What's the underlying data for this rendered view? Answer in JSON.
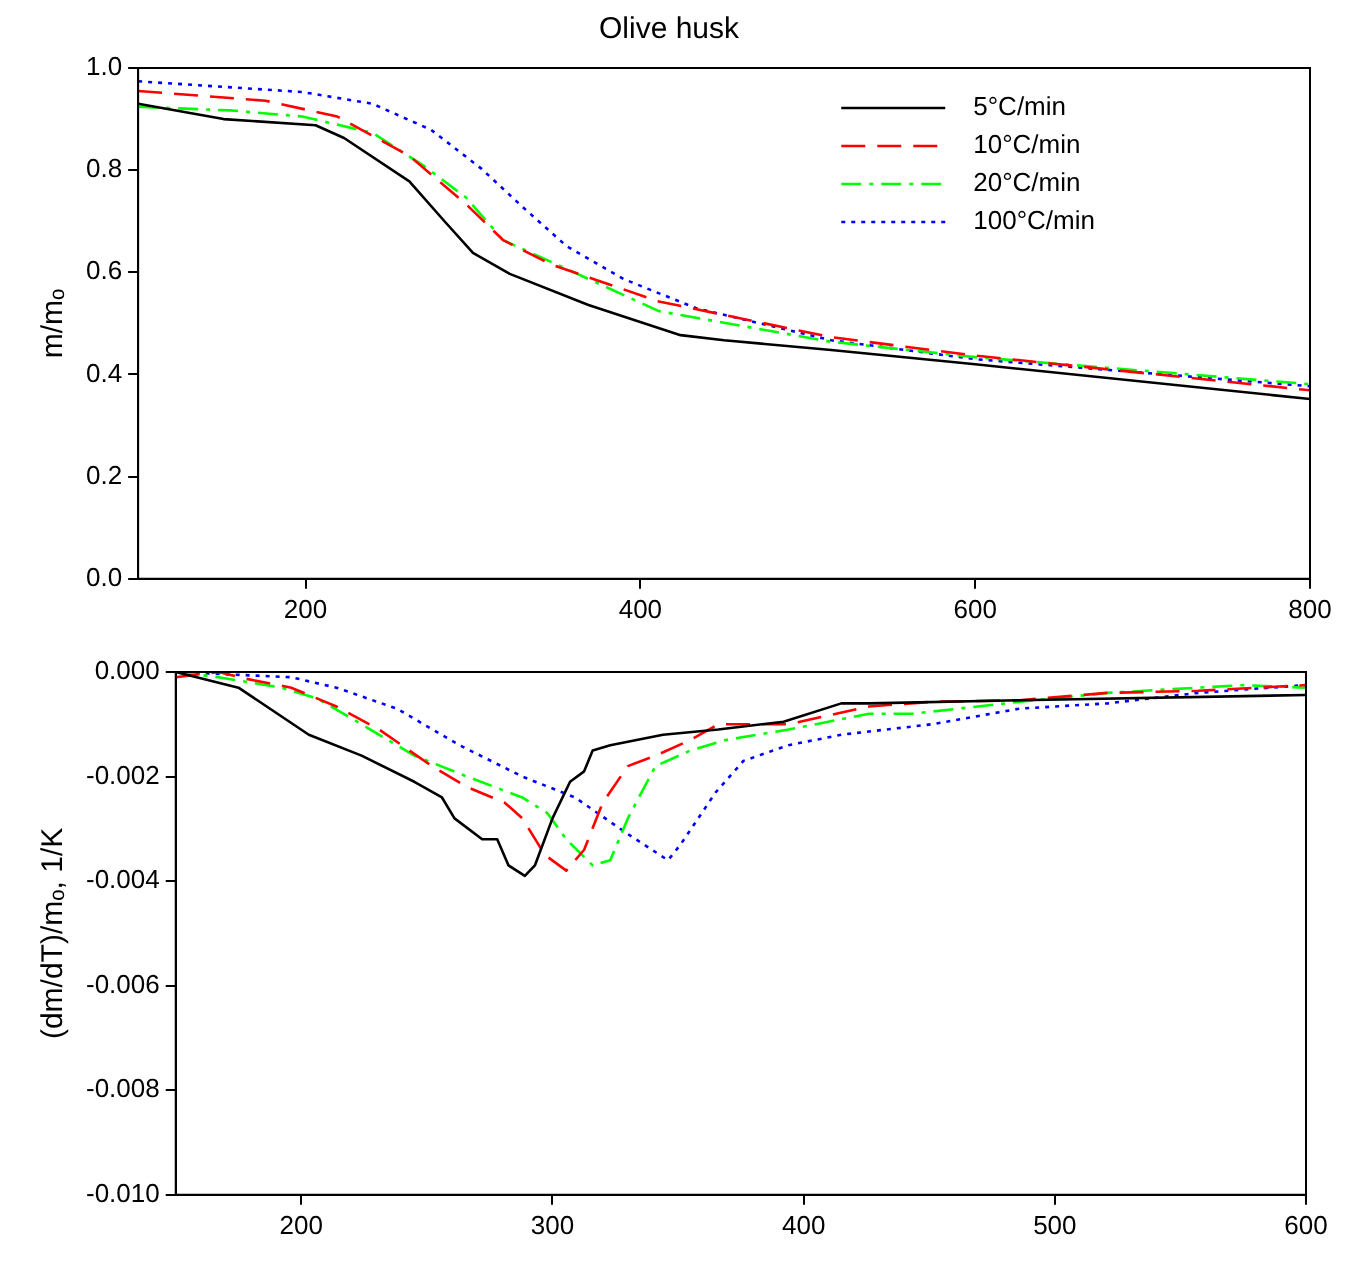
{
  "chart_data": [
    {
      "type": "line",
      "title": "Olive husk",
      "ylabel": "m/mₒ",
      "xlim": [
        100,
        800
      ],
      "xticks": [
        200,
        400,
        600,
        800
      ],
      "ylim": [
        0,
        1
      ],
      "yticks": [
        {
          "value": 0,
          "label": "0.0"
        },
        {
          "value": 0.2,
          "label": "0.2"
        },
        {
          "value": 0.4,
          "label": "0.4"
        },
        {
          "value": 0.6,
          "label": "0.6"
        },
        {
          "value": 0.8,
          "label": "0.8"
        },
        {
          "value": 1,
          "label": "1.0"
        }
      ],
      "grid": false,
      "legend": "top right",
      "marker": "none",
      "series": [
        {
          "name": "5°C/min",
          "color": "#000000",
          "line_style": "solid",
          "x": [
            100,
            151,
            206,
            223,
            262,
            283,
            300,
            322,
            369,
            424,
            450,
            514,
            600,
            800
          ],
          "values": [
            0.93,
            0.9,
            0.888,
            0.863,
            0.778,
            0.7,
            0.638,
            0.597,
            0.536,
            0.477,
            0.467,
            0.448,
            0.42,
            0.352
          ]
        },
        {
          "name": "10°C/min",
          "color": "#ff0000",
          "line_style": "dashed",
          "x": [
            100,
            176,
            219,
            262,
            296,
            318,
            347,
            411,
            514,
            600,
            800
          ],
          "values": [
            0.955,
            0.936,
            0.905,
            0.828,
            0.733,
            0.663,
            0.615,
            0.543,
            0.473,
            0.437,
            0.369
          ]
        },
        {
          "name": "20°C/min",
          "color": "#00ff00",
          "line_style": "dashdot",
          "x": [
            100,
            155,
            198,
            240,
            270,
            296,
            318,
            347,
            411,
            514,
            600,
            800
          ],
          "values": [
            0.924,
            0.917,
            0.905,
            0.873,
            0.81,
            0.746,
            0.663,
            0.62,
            0.524,
            0.464,
            0.434,
            0.381
          ]
        },
        {
          "name": "100°C/min",
          "color": "#0000ff",
          "line_style": "dotted",
          "x": [
            100,
            198,
            240,
            275,
            305,
            330,
            356,
            390,
            433,
            514,
            600,
            800
          ],
          "values": [
            0.974,
            0.953,
            0.93,
            0.879,
            0.803,
            0.727,
            0.651,
            0.587,
            0.53,
            0.467,
            0.43,
            0.377
          ]
        }
      ]
    },
    {
      "type": "line",
      "ylabel": "(dm/dT)/mₒ, 1/K",
      "xlim": [
        150,
        600
      ],
      "xticks": [
        200,
        300,
        400,
        500,
        600
      ],
      "ylim": [
        -0.01,
        0
      ],
      "yticks": [
        {
          "value": -0.01,
          "label": "-0.010"
        },
        {
          "value": -0.008,
          "label": "-0.008"
        },
        {
          "value": -0.006,
          "label": "-0.006"
        },
        {
          "value": -0.004,
          "label": "-0.004"
        },
        {
          "value": -0.002,
          "label": "-0.002"
        },
        {
          "value": 0,
          "label": "0.000"
        }
      ],
      "grid": false,
      "legend": false,
      "marker": "none",
      "series": [
        {
          "color": "#000000",
          "line_style": "solid",
          "x": [
            150,
            175,
            203,
            224,
            245,
            256,
            261,
            272,
            278,
            282.5,
            289,
            293,
            300,
            307,
            312.6,
            316,
            323,
            344,
            366,
            392,
            415,
            426,
            486,
            600
          ],
          "values": [
            0,
            -0.0003,
            -0.0012,
            -0.0016,
            -0.0021,
            -0.0024,
            -0.0028,
            -0.0032,
            -0.0032,
            -0.0037,
            -0.0039,
            -0.0037,
            -0.0028,
            -0.0021,
            -0.0019,
            -0.0015,
            -0.0014,
            -0.0012,
            -0.0011,
            -0.00095,
            -0.0006,
            -0.0006,
            -0.00054,
            -0.00044
          ]
        },
        {
          "color": "#ff0000",
          "line_style": "dashed",
          "x": [
            150,
            167,
            178,
            196,
            214,
            231,
            252,
            266,
            281,
            288,
            297,
            305.5,
            312.6,
            320,
            330,
            341,
            355,
            366,
            394,
            426,
            451,
            486,
            521,
            557,
            600
          ],
          "values": [
            -0.0001,
            0,
            -0.00013,
            -0.0003,
            -0.00066,
            -0.0011,
            -0.0018,
            -0.0022,
            -0.0025,
            -0.0028,
            -0.0035,
            -0.0038,
            -0.0034,
            -0.0025,
            -0.0018,
            -0.0016,
            -0.0013,
            -0.001,
            -0.001,
            -0.00066,
            -0.00057,
            -0.00054,
            -0.0004,
            -0.00036,
            -0.00025
          ]
        },
        {
          "color": "#00ff00",
          "line_style": "dashdot",
          "x": [
            150,
            167,
            192,
            206,
            224,
            245,
            266,
            288,
            298,
            305.5,
            316,
            323,
            330,
            341,
            355,
            369,
            394,
            426,
            443,
            486,
            521,
            575,
            600
          ],
          "values": [
            0,
            -0.0001,
            -0.0003,
            -0.0005,
            -0.001,
            -0.0016,
            -0.002,
            -0.0024,
            -0.0027,
            -0.0032,
            -0.0037,
            -0.0036,
            -0.0028,
            -0.0018,
            -0.0015,
            -0.0013,
            -0.0011,
            -0.0008,
            -0.0008,
            -0.00057,
            -0.0004,
            -0.00025,
            -0.0003
          ]
        },
        {
          "color": "#0000ff",
          "line_style": "dotted",
          "x": [
            150,
            196,
            214,
            238,
            263,
            288,
            309,
            330,
            346,
            351,
            365,
            376,
            394,
            415,
            451,
            486,
            521,
            557,
            600
          ],
          "values": [
            0,
            -0.0001,
            -0.0003,
            -0.0007,
            -0.0014,
            -0.002,
            -0.0024,
            -0.0031,
            -0.0036,
            -0.0033,
            -0.0023,
            -0.0017,
            -0.0014,
            -0.0012,
            -0.001,
            -0.0007,
            -0.0006,
            -0.0004,
            -0.00025
          ]
        }
      ]
    }
  ]
}
